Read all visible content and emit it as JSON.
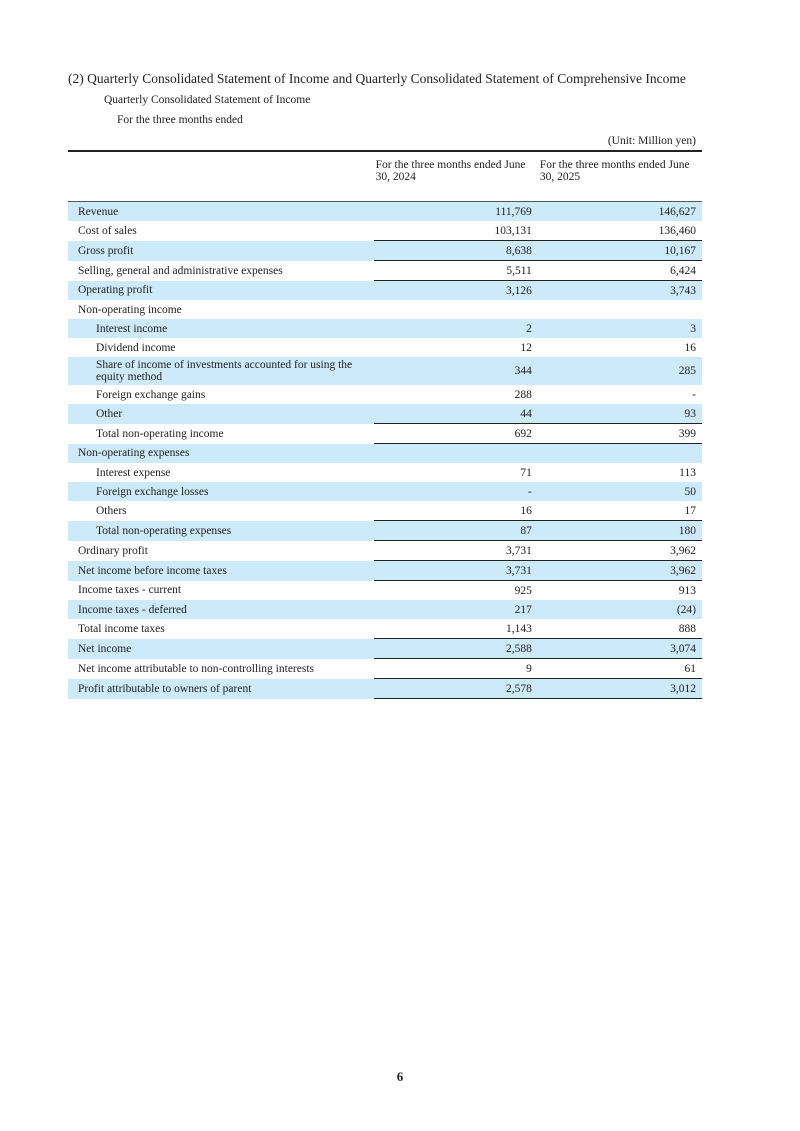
{
  "section_title": "(2) Quarterly Consolidated Statement of Income and Quarterly Consolidated Statement of Comprehensive Income",
  "subtitle": "Quarterly Consolidated Statement of Income",
  "period_label": "For the three months ended",
  "unit": "(Unit: Million yen)",
  "columns": [
    "For the three months ended June 30, 2024",
    "For the three months ended June 30, 2025"
  ],
  "rows": [
    {
      "label": "Revenue",
      "v1": "111,769",
      "v2": "146,627"
    },
    {
      "label": "Cost of sales",
      "v1": "103,131",
      "v2": "136,460"
    },
    {
      "label": "Gross profit",
      "v1": "8,638",
      "v2": "10,167"
    },
    {
      "label": "Selling, general and administrative expenses",
      "v1": "5,511",
      "v2": "6,424"
    },
    {
      "label": "Operating profit",
      "v1": "3,126",
      "v2": "3,743"
    },
    {
      "label": "Non-operating income",
      "v1": "",
      "v2": ""
    },
    {
      "label": "Interest income",
      "v1": "2",
      "v2": "3"
    },
    {
      "label": "Dividend income",
      "v1": "12",
      "v2": "16"
    },
    {
      "label": "Share of income of investments accounted for using the equity method",
      "v1": "344",
      "v2": "285"
    },
    {
      "label": "Foreign exchange gains",
      "v1": "288",
      "v2": "-"
    },
    {
      "label": "Other",
      "v1": "44",
      "v2": "93"
    },
    {
      "label": "Total non-operating income",
      "v1": "692",
      "v2": "399"
    },
    {
      "label": "Non-operating expenses",
      "v1": "",
      "v2": ""
    },
    {
      "label": "Interest expense",
      "v1": "71",
      "v2": "113"
    },
    {
      "label": "Foreign exchange losses",
      "v1": "-",
      "v2": "50"
    },
    {
      "label": "Others",
      "v1": "16",
      "v2": "17"
    },
    {
      "label": "Total non-operating expenses",
      "v1": "87",
      "v2": "180"
    },
    {
      "label": "Ordinary profit",
      "v1": "3,731",
      "v2": "3,962"
    },
    {
      "label": "Net income before income taxes",
      "v1": "3,731",
      "v2": "3,962"
    },
    {
      "label": "Income taxes - current",
      "v1": "925",
      "v2": "913"
    },
    {
      "label": "Income taxes - deferred",
      "v1": "217",
      "v2": "(24)"
    },
    {
      "label": "Total income taxes",
      "v1": "1,143",
      "v2": "888"
    },
    {
      "label": "Net income",
      "v1": "2,588",
      "v2": "3,074"
    },
    {
      "label": "Net income attributable to non-controlling interests",
      "v1": "9",
      "v2": "61"
    },
    {
      "label": "Profit attributable to owners of parent",
      "v1": "2,578",
      "v2": "3,012"
    }
  ],
  "highlight_color": "#cdeafb",
  "page_number": "6"
}
